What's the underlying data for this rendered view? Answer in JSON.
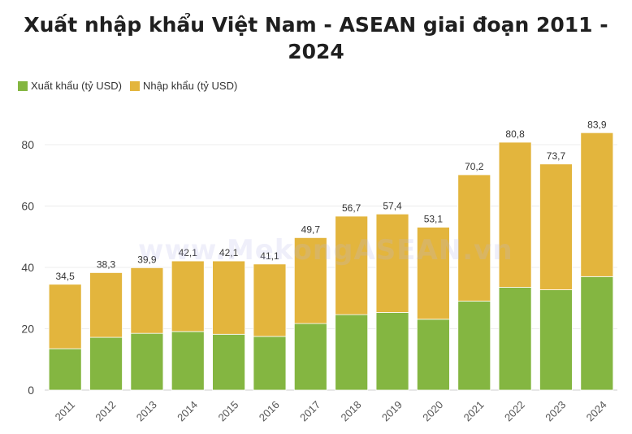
{
  "chart_data": {
    "type": "bar",
    "stacked": true,
    "title": "Xuất nhập khẩu Việt Nam - ASEAN giai đoạn 2011 - 2024",
    "categories": [
      "2011",
      "2012",
      "2013",
      "2014",
      "2015",
      "2016",
      "2017",
      "2018",
      "2019",
      "2020",
      "2021",
      "2022",
      "2023",
      "2024"
    ],
    "series": [
      {
        "name": "Xuất khẩu (tỷ USD)",
        "color": "#84b641",
        "values": [
          13.5,
          17.2,
          18.5,
          19.1,
          18.2,
          17.5,
          21.7,
          24.6,
          25.3,
          23.1,
          29.0,
          33.5,
          32.7,
          37.0
        ]
      },
      {
        "name": "Nhập khẩu (tỷ USD)",
        "color": "#e3b53d",
        "values": [
          21.0,
          21.1,
          21.4,
          23.0,
          23.9,
          23.6,
          28.0,
          32.1,
          32.1,
          30.0,
          41.2,
          47.3,
          41.0,
          46.9
        ]
      }
    ],
    "totals": [
      "34,5",
      "38,3",
      "39,9",
      "42,1",
      "42,1",
      "41,1",
      "49,7",
      "56,7",
      "57,4",
      "53,1",
      "70,2",
      "80,8",
      "73,7",
      "83,9"
    ],
    "total_values": [
      34.5,
      38.3,
      39.9,
      42.1,
      42.1,
      41.1,
      49.7,
      56.7,
      57.4,
      53.1,
      70.2,
      80.8,
      73.7,
      83.9
    ],
    "yticks": [
      0,
      20,
      40,
      60,
      80
    ],
    "ylim": [
      0,
      90
    ],
    "grid": true,
    "legend_position": "top-left",
    "xlabel": "",
    "ylabel": ""
  },
  "watermark": "www.MekongASEAN.vn"
}
